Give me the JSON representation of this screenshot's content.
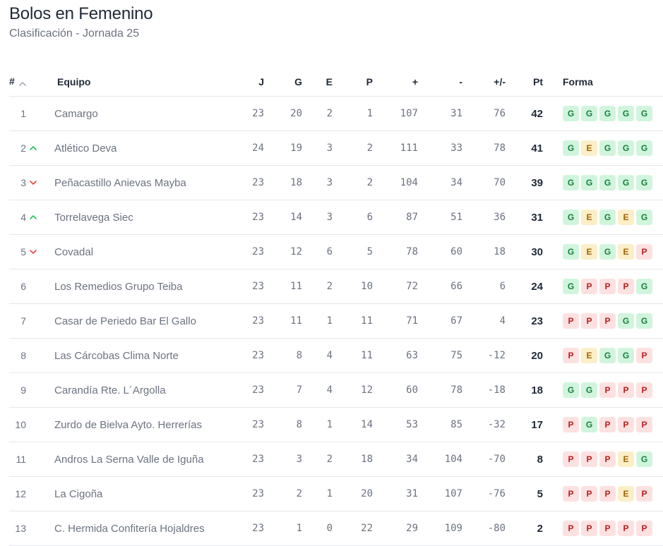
{
  "header": {
    "title": "Bolos en Femenino",
    "subtitle": "Clasificación - Jornada 25"
  },
  "table": {
    "columns": {
      "pos": "#",
      "team": "Equipo",
      "j": "J",
      "g": "G",
      "e": "E",
      "p": "P",
      "plus": "+",
      "minus": "-",
      "diff": "+/-",
      "pt": "Pt",
      "form": "Forma"
    },
    "rows": [
      {
        "pos": "1",
        "trend": "none",
        "team": "Camargo",
        "j": "23",
        "g": "20",
        "e": "2",
        "p": "1",
        "plus": "107",
        "minus": "31",
        "diff": "76",
        "pt": "42",
        "form": [
          "G",
          "G",
          "G",
          "G",
          "G"
        ]
      },
      {
        "pos": "2",
        "trend": "up",
        "team": "Atlético Deva",
        "j": "24",
        "g": "19",
        "e": "3",
        "p": "2",
        "plus": "111",
        "minus": "33",
        "diff": "78",
        "pt": "41",
        "form": [
          "G",
          "E",
          "G",
          "G",
          "G"
        ]
      },
      {
        "pos": "3",
        "trend": "down",
        "team": "Peñacastillo Anievas Mayba",
        "j": "23",
        "g": "18",
        "e": "3",
        "p": "2",
        "plus": "104",
        "minus": "34",
        "diff": "70",
        "pt": "39",
        "form": [
          "G",
          "G",
          "G",
          "G",
          "G"
        ]
      },
      {
        "pos": "4",
        "trend": "up",
        "team": "Torrelavega Siec",
        "j": "23",
        "g": "14",
        "e": "3",
        "p": "6",
        "plus": "87",
        "minus": "51",
        "diff": "36",
        "pt": "31",
        "form": [
          "G",
          "E",
          "G",
          "E",
          "G"
        ]
      },
      {
        "pos": "5",
        "trend": "down",
        "team": "Covadal",
        "j": "23",
        "g": "12",
        "e": "6",
        "p": "5",
        "plus": "78",
        "minus": "60",
        "diff": "18",
        "pt": "30",
        "form": [
          "G",
          "E",
          "G",
          "E",
          "P"
        ]
      },
      {
        "pos": "6",
        "trend": "none",
        "team": "Los Remedios Grupo Teiba",
        "j": "23",
        "g": "11",
        "e": "2",
        "p": "10",
        "plus": "72",
        "minus": "66",
        "diff": "6",
        "pt": "24",
        "form": [
          "G",
          "P",
          "P",
          "P",
          "G"
        ]
      },
      {
        "pos": "7",
        "trend": "none",
        "team": "Casar de Periedo Bar El Gallo",
        "j": "23",
        "g": "11",
        "e": "1",
        "p": "11",
        "plus": "71",
        "minus": "67",
        "diff": "4",
        "pt": "23",
        "form": [
          "P",
          "P",
          "P",
          "G",
          "G"
        ]
      },
      {
        "pos": "8",
        "trend": "none",
        "team": "Las Cárcobas Clima Norte",
        "j": "23",
        "g": "8",
        "e": "4",
        "p": "11",
        "plus": "63",
        "minus": "75",
        "diff": "-12",
        "pt": "20",
        "form": [
          "P",
          "E",
          "G",
          "G",
          "P"
        ]
      },
      {
        "pos": "9",
        "trend": "none",
        "team": "Carandía Rte. L´Argolla",
        "j": "23",
        "g": "7",
        "e": "4",
        "p": "12",
        "plus": "60",
        "minus": "78",
        "diff": "-18",
        "pt": "18",
        "form": [
          "G",
          "G",
          "P",
          "P",
          "P"
        ]
      },
      {
        "pos": "10",
        "trend": "none",
        "team": "Zurdo de Bielva Ayto. Herrerías",
        "j": "23",
        "g": "8",
        "e": "1",
        "p": "14",
        "plus": "53",
        "minus": "85",
        "diff": "-32",
        "pt": "17",
        "form": [
          "P",
          "G",
          "P",
          "P",
          "P"
        ]
      },
      {
        "pos": "11",
        "trend": "none",
        "team": "Andros La Serna Valle de Iguña",
        "j": "23",
        "g": "3",
        "e": "2",
        "p": "18",
        "plus": "34",
        "minus": "104",
        "diff": "-70",
        "pt": "8",
        "form": [
          "P",
          "P",
          "P",
          "E",
          "G"
        ]
      },
      {
        "pos": "12",
        "trend": "none",
        "team": "La Cigoña",
        "j": "23",
        "g": "2",
        "e": "1",
        "p": "20",
        "plus": "31",
        "minus": "107",
        "diff": "-76",
        "pt": "5",
        "form": [
          "P",
          "P",
          "P",
          "E",
          "P"
        ]
      },
      {
        "pos": "13",
        "trend": "none",
        "team": "C. Hermida Confitería Hojaldres",
        "j": "23",
        "g": "1",
        "e": "0",
        "p": "22",
        "plus": "29",
        "minus": "109",
        "diff": "-80",
        "pt": "2",
        "form": [
          "P",
          "P",
          "P",
          "P",
          "P"
        ]
      }
    ]
  },
  "icons": {
    "sort": "chevron-up-icon",
    "up": "chevron-up-icon",
    "down": "chevron-down-icon"
  },
  "colors": {
    "up": "#22c55e",
    "down": "#ef4444",
    "sort": "#9ca3af",
    "win_bg": "#d1f5dc",
    "draw_bg": "#fcefc7",
    "loss_bg": "#fde1e1"
  }
}
